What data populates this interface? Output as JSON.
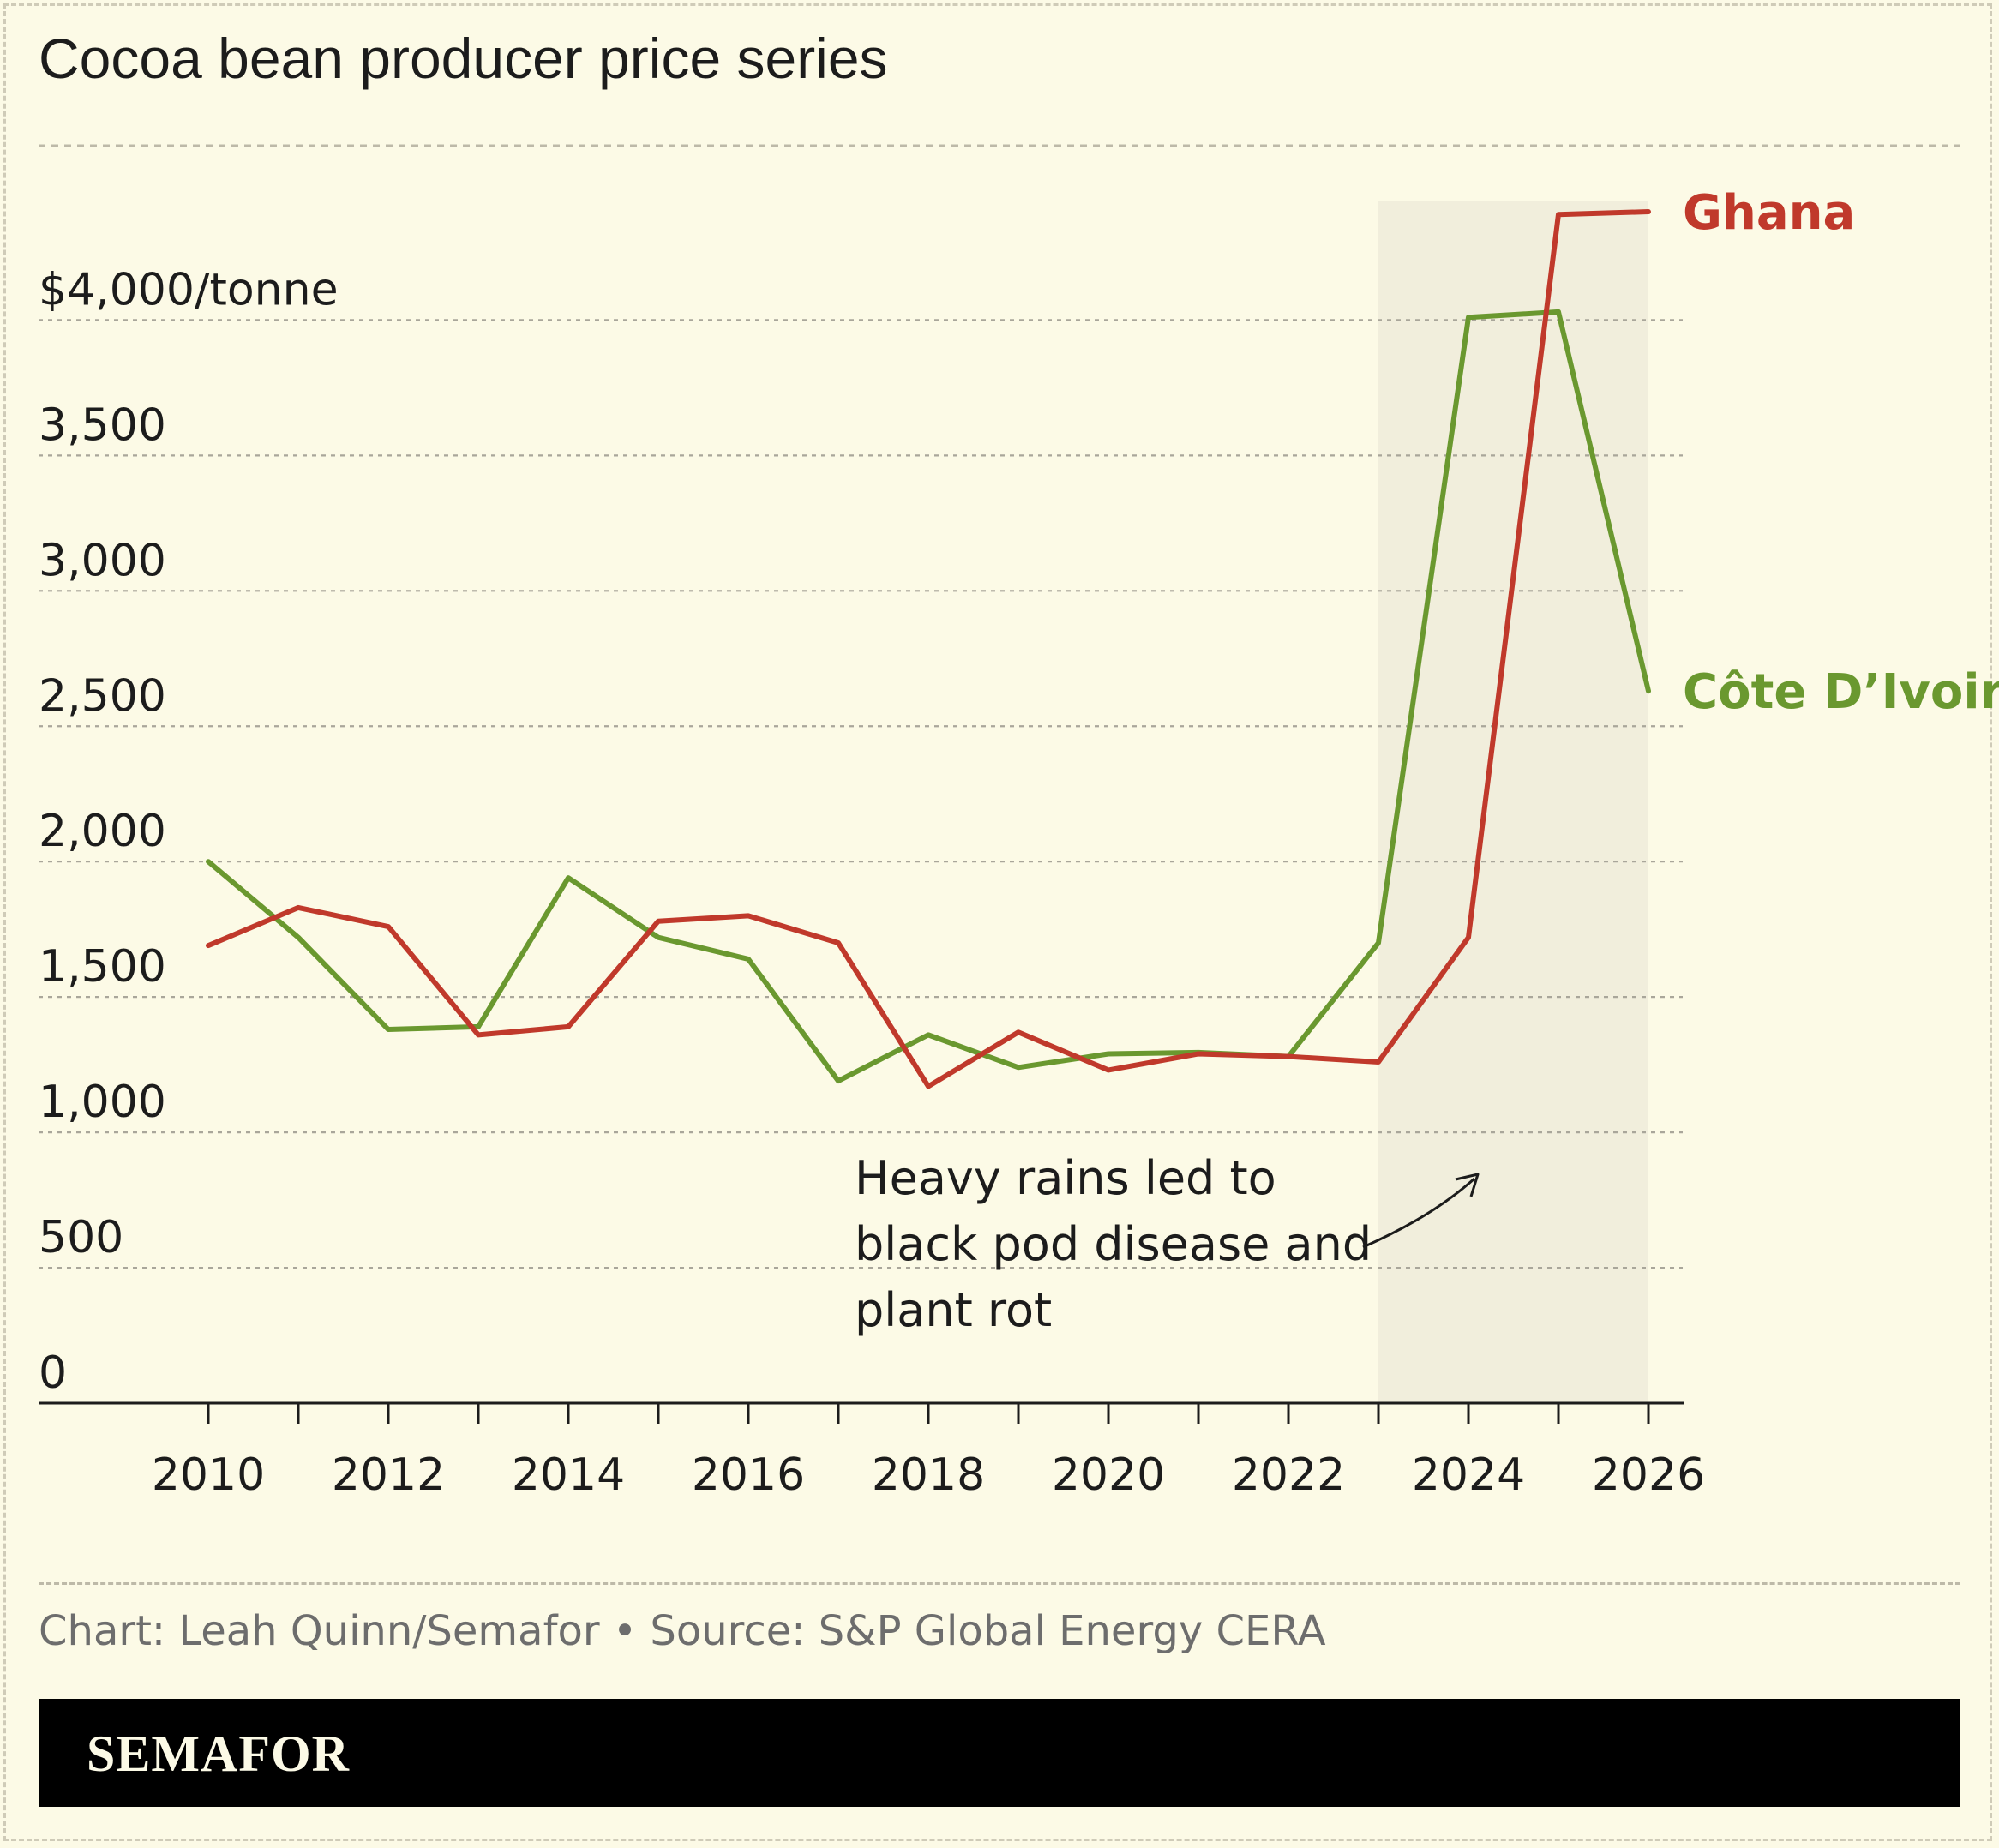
{
  "title": "Cocoa bean producer price series",
  "credit": "Chart: Leah Quinn/Semafor • Source: S&P Global Energy CERA",
  "brand": "SEMAFOR",
  "annotation": [
    "Heavy rains led to",
    "black pod disease and",
    "plant rot"
  ],
  "colors": {
    "background": "#fcfae6",
    "shade": "#f1eedc",
    "ghana": "#c0392b",
    "ivory": "#6a982f",
    "grid": "#a9a69a",
    "axis": "#1c1c1c"
  },
  "chart_data": {
    "type": "line",
    "x": [
      2010,
      2011,
      2012,
      2013,
      2014,
      2015,
      2016,
      2017,
      2018,
      2019,
      2020,
      2021,
      2022,
      2023,
      2024,
      2025,
      2026
    ],
    "series": [
      {
        "name": "Ghana",
        "values": [
          1690,
          1830,
          1760,
          1360,
          1390,
          1780,
          1800,
          1700,
          1170,
          1370,
          1230,
          1290,
          1280,
          1260,
          1720,
          4390,
          4400
        ]
      },
      {
        "name": "Côte D’Ivoire",
        "values": [
          2000,
          1720,
          1380,
          1390,
          1940,
          1720,
          1640,
          1190,
          1360,
          1240,
          1290,
          1295,
          1280,
          1700,
          4010,
          4030,
          2630
        ]
      }
    ],
    "xlim": [
      2008.1,
      2026.4
    ],
    "ylim": [
      0,
      4600
    ],
    "xticks": [
      2010,
      2011,
      2012,
      2013,
      2014,
      2015,
      2016,
      2017,
      2018,
      2019,
      2020,
      2021,
      2022,
      2023,
      2024,
      2025,
      2026
    ],
    "xtick_labels": [
      "2010",
      "2012",
      "2014",
      "2016",
      "2018",
      "2020",
      "2022",
      "2024",
      "2026"
    ],
    "yticks": [
      0,
      500,
      1000,
      1500,
      2000,
      2500,
      3000,
      3500,
      4000
    ],
    "ytick_labels": [
      "0",
      "500",
      "1,000",
      "1,500",
      "2,000",
      "2,500",
      "3,000",
      "3,500",
      "$4,000/tonne"
    ],
    "shaded_range": [
      2023,
      2026
    ],
    "grid": true,
    "legend": "direct labels at line ends"
  }
}
